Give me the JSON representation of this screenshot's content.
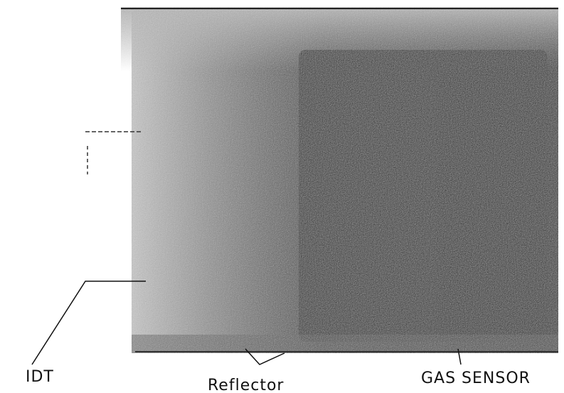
{
  "labels": {
    "idt": "IDT",
    "reflector": "Reflector",
    "gas_sensor": "GAS SENSOR"
  }
}
